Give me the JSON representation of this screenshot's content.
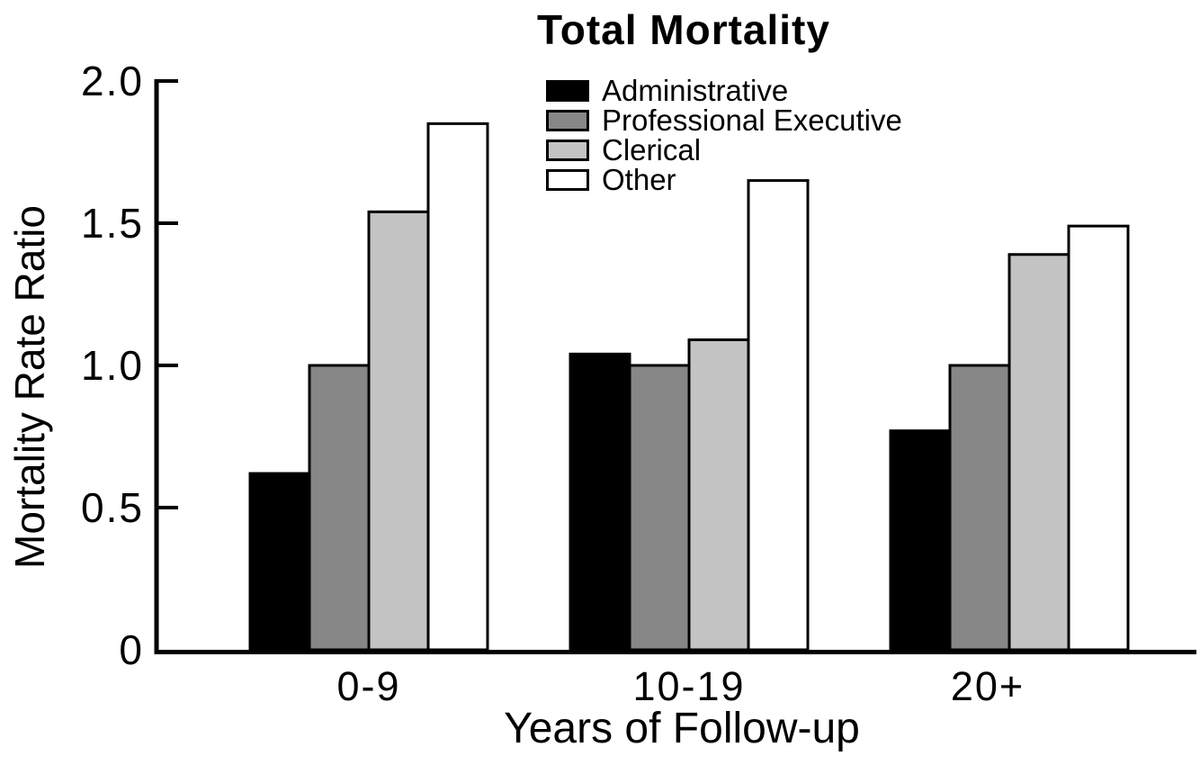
{
  "chart_data": {
    "type": "bar",
    "title": "Total Mortality",
    "xlabel": "Years of Follow-up",
    "ylabel": "Mortality Rate Ratio",
    "categories": [
      "0-9",
      "10-19",
      "20+"
    ],
    "series": [
      {
        "name": "Administrative",
        "color": "#000000",
        "values": [
          0.62,
          1.04,
          0.77
        ]
      },
      {
        "name": "Professional Executive",
        "color": "#878787",
        "values": [
          1.0,
          1.0,
          1.0
        ]
      },
      {
        "name": "Clerical",
        "color": "#c3c3c3",
        "values": [
          1.54,
          1.09,
          1.39
        ]
      },
      {
        "name": "Other",
        "color": "#ffffff",
        "values": [
          1.85,
          1.65,
          1.49
        ]
      }
    ],
    "ylim": [
      0,
      2.0
    ],
    "yticks": [
      0,
      0.5,
      1.0,
      1.5,
      2.0
    ],
    "ytick_labels": [
      "0",
      "0.5",
      "1.0",
      "1.5",
      "2.0"
    ],
    "grid": false,
    "legend_position": "top-center-inside",
    "axis_color": "#000000",
    "bar_border_color": "#000000",
    "background": "#ffffff",
    "text_color": "#000000"
  }
}
